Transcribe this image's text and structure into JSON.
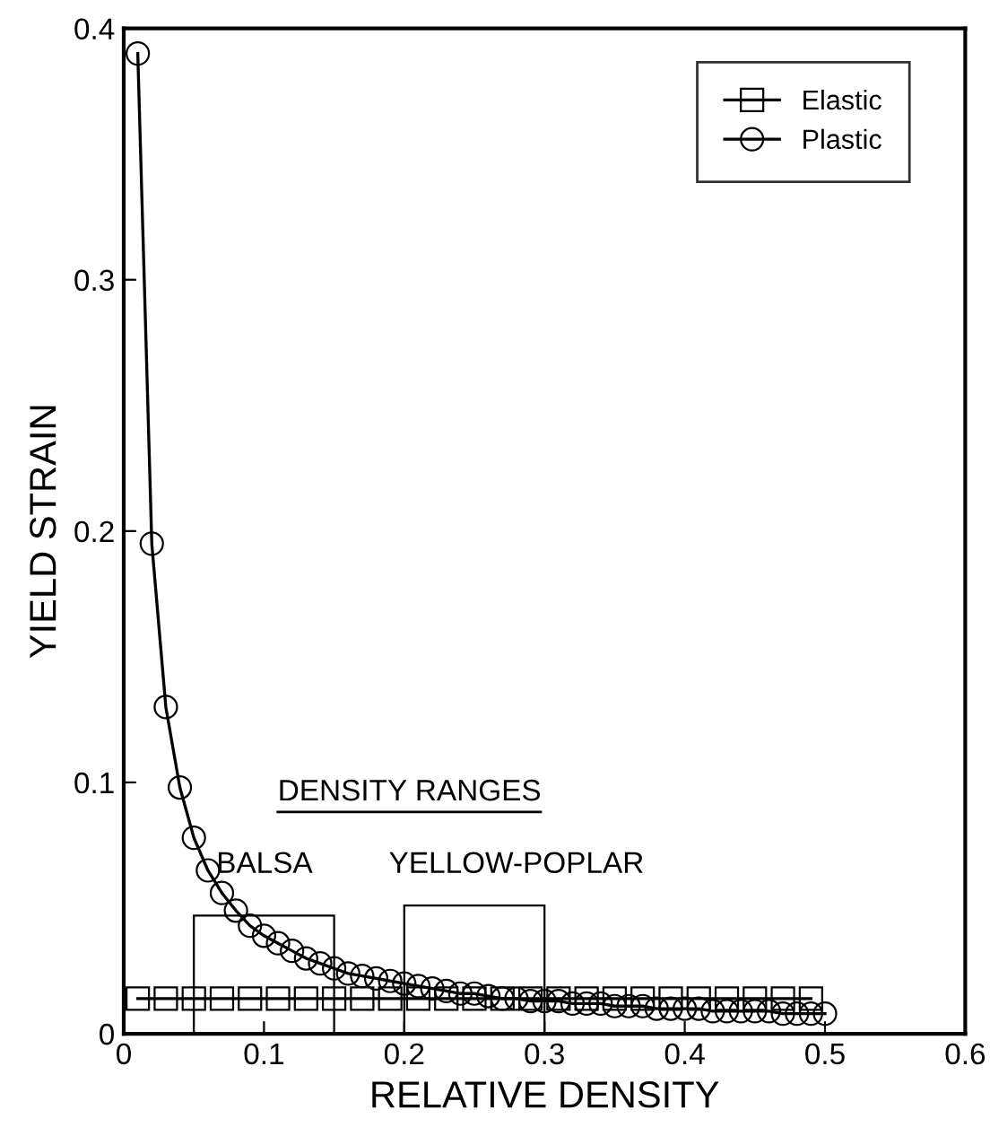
{
  "chart_data": {
    "type": "line",
    "xlabel": "RELATIVE DENSITY",
    "ylabel": "YIELD STRAIN",
    "xlim": [
      0,
      0.6
    ],
    "ylim": [
      0,
      0.4
    ],
    "xticks": [
      0,
      0.1,
      0.2,
      0.3,
      0.4,
      0.5,
      0.6
    ],
    "yticks": [
      0,
      0.1,
      0.2,
      0.3,
      0.4
    ],
    "grid": false,
    "legend": "top right",
    "series": [
      {
        "name": "Elastic",
        "color": "#000000",
        "marker": "square",
        "x": [
          0.01,
          0.03,
          0.05,
          0.07,
          0.09,
          0.11,
          0.13,
          0.15,
          0.17,
          0.19,
          0.21,
          0.23,
          0.25,
          0.27,
          0.29,
          0.31,
          0.33,
          0.35,
          0.37,
          0.39,
          0.41,
          0.43,
          0.45,
          0.47,
          0.49
        ],
        "values": [
          0.014,
          0.014,
          0.014,
          0.014,
          0.014,
          0.014,
          0.014,
          0.014,
          0.014,
          0.014,
          0.014,
          0.014,
          0.014,
          0.014,
          0.014,
          0.014,
          0.014,
          0.014,
          0.014,
          0.014,
          0.014,
          0.014,
          0.014,
          0.014,
          0.014
        ]
      },
      {
        "name": "Plastic",
        "color": "#000000",
        "marker": "circle",
        "x": [
          0.01,
          0.02,
          0.03,
          0.04,
          0.05,
          0.06,
          0.07,
          0.08,
          0.09,
          0.1,
          0.11,
          0.12,
          0.13,
          0.14,
          0.15,
          0.16,
          0.17,
          0.18,
          0.19,
          0.2,
          0.21,
          0.22,
          0.23,
          0.24,
          0.25,
          0.26,
          0.27,
          0.28,
          0.29,
          0.3,
          0.31,
          0.32,
          0.33,
          0.34,
          0.35,
          0.36,
          0.37,
          0.38,
          0.39,
          0.4,
          0.41,
          0.42,
          0.43,
          0.44,
          0.45,
          0.46,
          0.47,
          0.48,
          0.49,
          0.5
        ],
        "values": [
          0.39,
          0.195,
          0.13,
          0.098,
          0.078,
          0.065,
          0.056,
          0.049,
          0.043,
          0.039,
          0.036,
          0.033,
          0.03,
          0.028,
          0.026,
          0.024,
          0.023,
          0.022,
          0.021,
          0.02,
          0.019,
          0.018,
          0.017,
          0.016,
          0.016,
          0.015,
          0.014,
          0.014,
          0.013,
          0.013,
          0.013,
          0.012,
          0.012,
          0.012,
          0.011,
          0.011,
          0.011,
          0.01,
          0.01,
          0.01,
          0.01,
          0.009,
          0.009,
          0.009,
          0.009,
          0.009,
          0.008,
          0.008,
          0.008,
          0.008
        ]
      },
      {
        "type": "bar",
        "color": "#000000",
        "x": [
          0.1,
          0.25
        ],
        "values": [
          0.047,
          0.051
        ]
      }
    ],
    "annotations": [
      "DENSITY RANGES",
      "BALSA",
      "YELLOW-POPLAR"
    ]
  }
}
